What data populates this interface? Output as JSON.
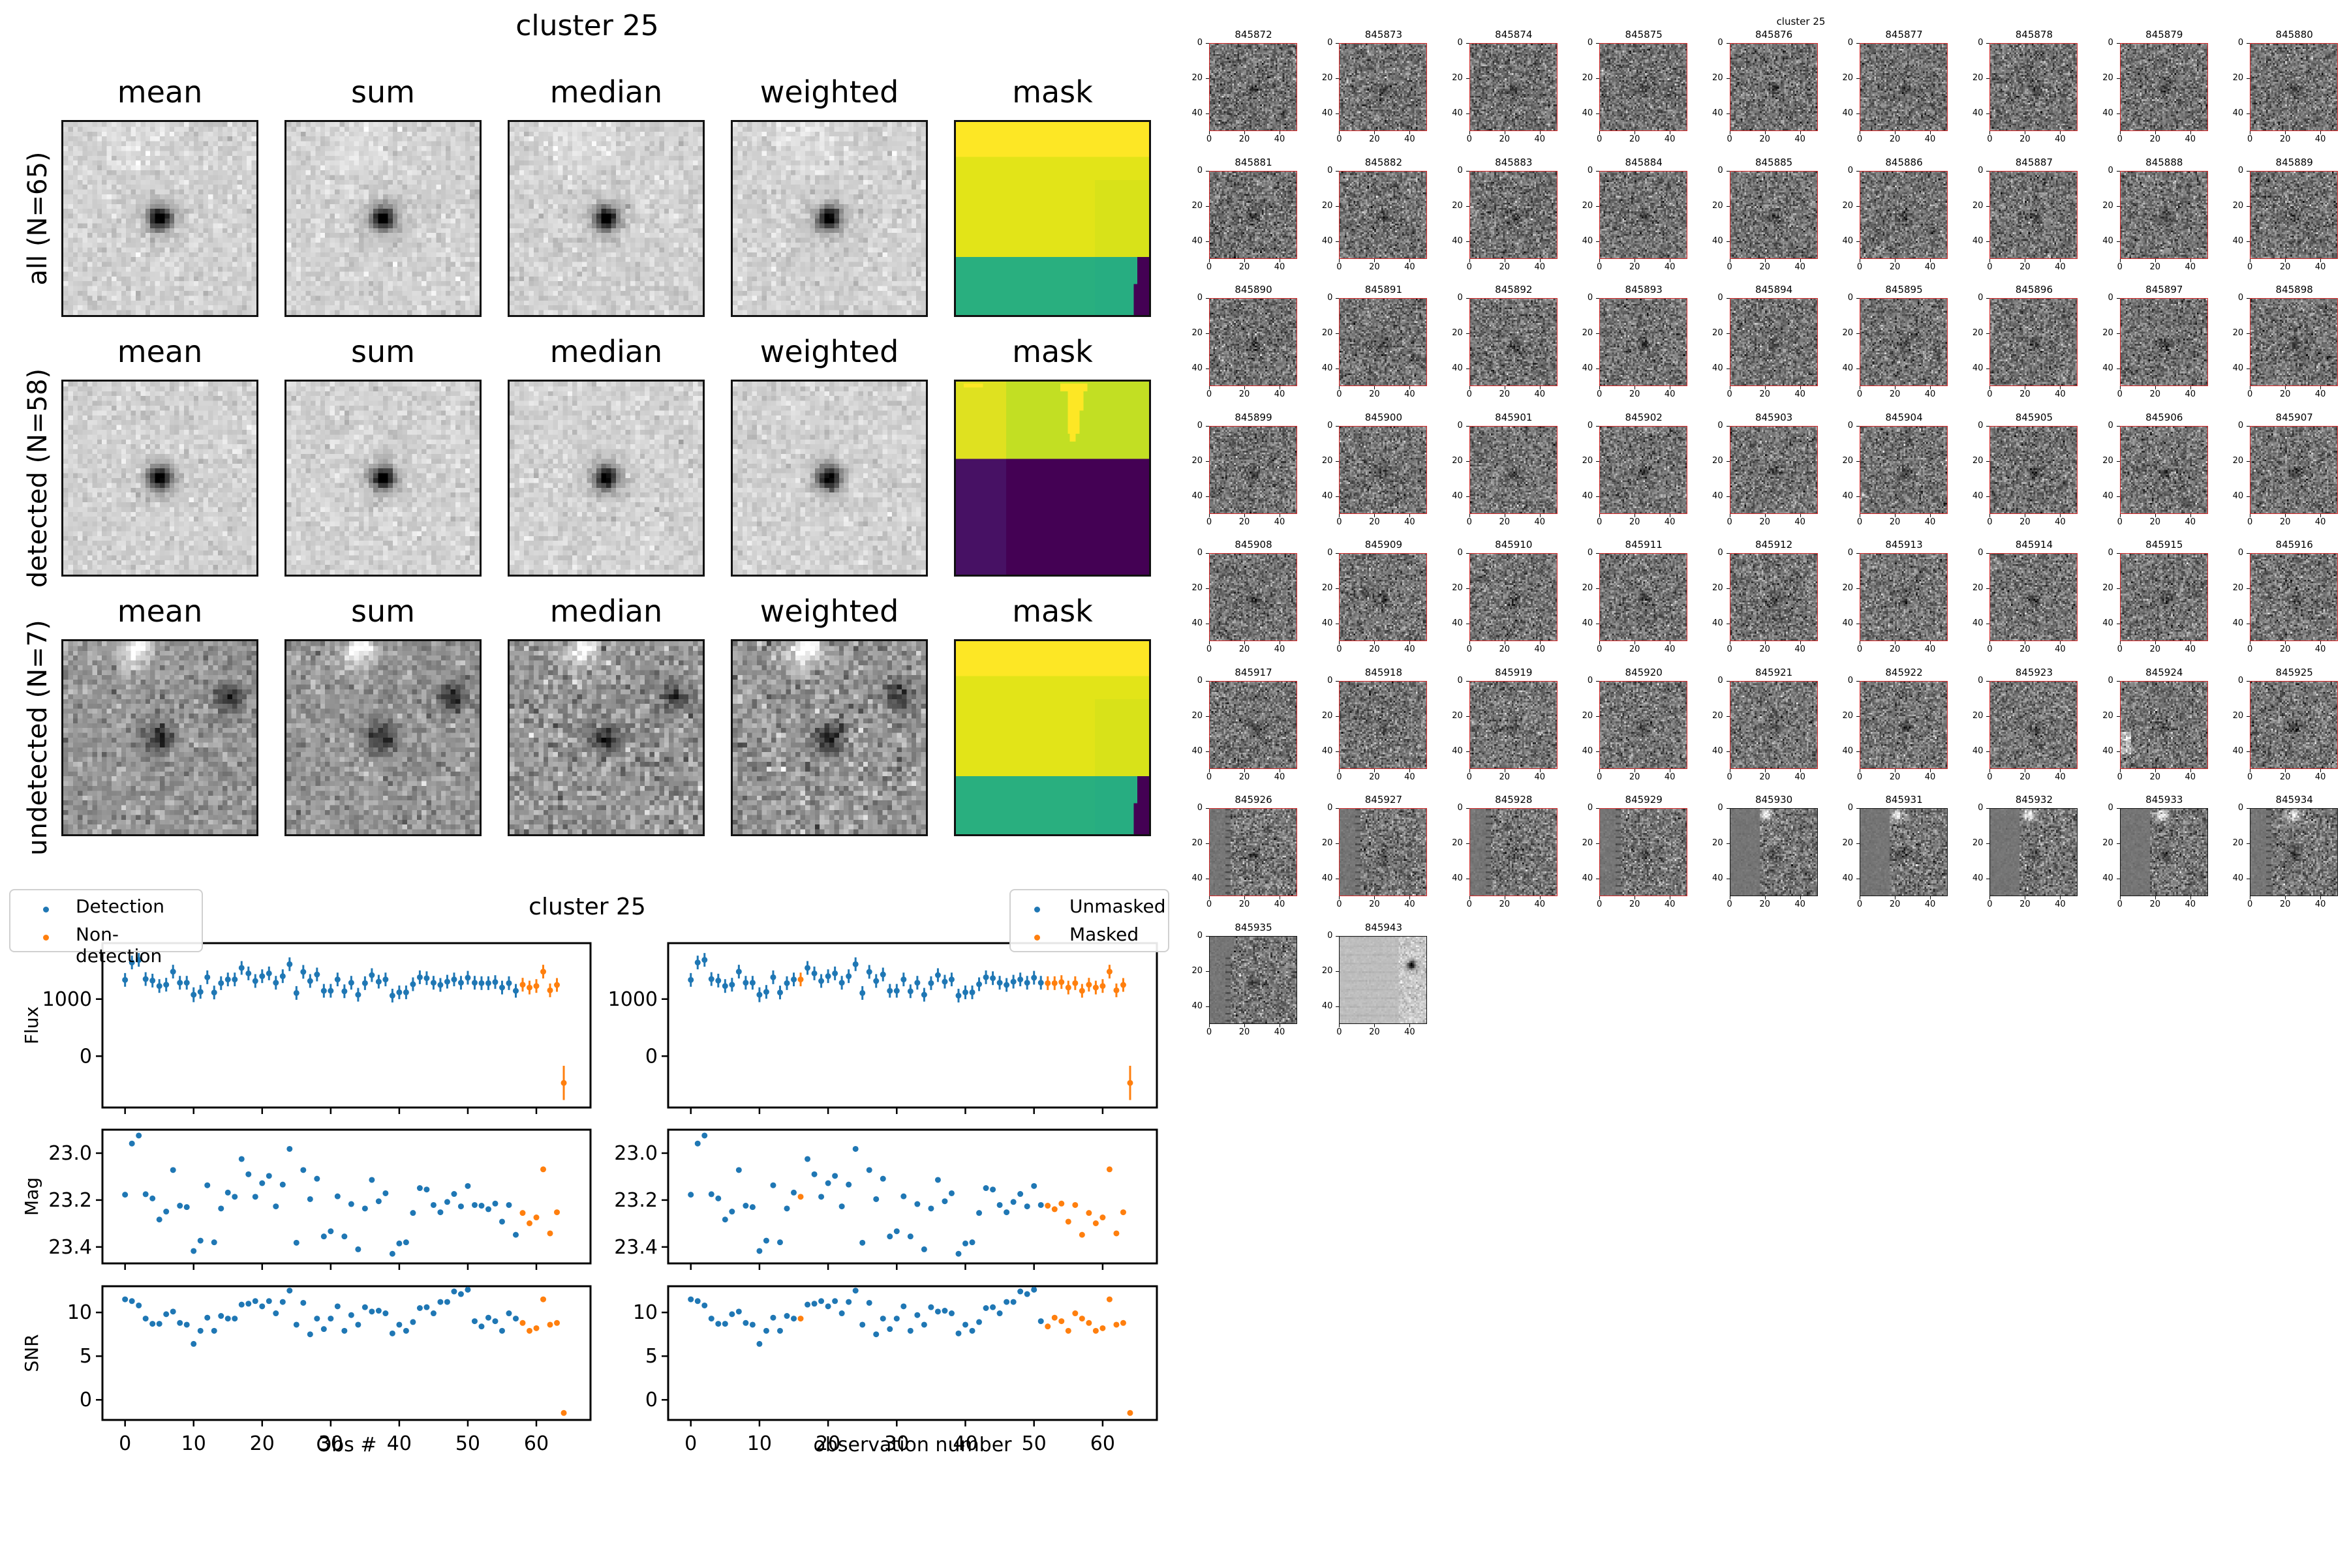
{
  "colors": {
    "detection": "#1f77b4",
    "non_detection": "#ff7f0e",
    "detected_border": "#d62728",
    "undetected_border": "#111111"
  },
  "stack_figure": {
    "title": "cluster 25",
    "columns": [
      "mean",
      "sum",
      "median",
      "weighted",
      "mask"
    ],
    "rows": [
      {
        "label": "all (N=65)",
        "kind": "all"
      },
      {
        "label": "detected (N=58)",
        "kind": "detected"
      },
      {
        "label": "undetected (N=7)",
        "kind": "undetected"
      }
    ]
  },
  "thumbnail_grid": {
    "title": "cluster 25",
    "tick_labels": [
      "0",
      "20",
      "40"
    ],
    "items": [
      {
        "id": "845872",
        "detected": true
      },
      {
        "id": "845873",
        "detected": true
      },
      {
        "id": "845874",
        "detected": true
      },
      {
        "id": "845875",
        "detected": true
      },
      {
        "id": "845876",
        "detected": true
      },
      {
        "id": "845877",
        "detected": true
      },
      {
        "id": "845878",
        "detected": true
      },
      {
        "id": "845879",
        "detected": true
      },
      {
        "id": "845880",
        "detected": true
      },
      {
        "id": "845881",
        "detected": true
      },
      {
        "id": "845882",
        "detected": true
      },
      {
        "id": "845883",
        "detected": true
      },
      {
        "id": "845884",
        "detected": true
      },
      {
        "id": "845885",
        "detected": true
      },
      {
        "id": "845886",
        "detected": true
      },
      {
        "id": "845887",
        "detected": true
      },
      {
        "id": "845888",
        "detected": true
      },
      {
        "id": "845889",
        "detected": true
      },
      {
        "id": "845890",
        "detected": true
      },
      {
        "id": "845891",
        "detected": true
      },
      {
        "id": "845892",
        "detected": true
      },
      {
        "id": "845893",
        "detected": true
      },
      {
        "id": "845894",
        "detected": true
      },
      {
        "id": "845895",
        "detected": true
      },
      {
        "id": "845896",
        "detected": true
      },
      {
        "id": "845897",
        "detected": true
      },
      {
        "id": "845898",
        "detected": true
      },
      {
        "id": "845899",
        "detected": true
      },
      {
        "id": "845900",
        "detected": true
      },
      {
        "id": "845901",
        "detected": true
      },
      {
        "id": "845902",
        "detected": true
      },
      {
        "id": "845903",
        "detected": true
      },
      {
        "id": "845904",
        "detected": true
      },
      {
        "id": "845905",
        "detected": true
      },
      {
        "id": "845906",
        "detected": true
      },
      {
        "id": "845907",
        "detected": true
      },
      {
        "id": "845908",
        "detected": true
      },
      {
        "id": "845909",
        "detected": true
      },
      {
        "id": "845910",
        "detected": true
      },
      {
        "id": "845911",
        "detected": true
      },
      {
        "id": "845912",
        "detected": true
      },
      {
        "id": "845913",
        "detected": true
      },
      {
        "id": "845914",
        "detected": true
      },
      {
        "id": "845915",
        "detected": true
      },
      {
        "id": "845916",
        "detected": true
      },
      {
        "id": "845917",
        "detected": true
      },
      {
        "id": "845918",
        "detected": true
      },
      {
        "id": "845919",
        "detected": true
      },
      {
        "id": "845920",
        "detected": true
      },
      {
        "id": "845921",
        "detected": true
      },
      {
        "id": "845922",
        "detected": true
      },
      {
        "id": "845923",
        "detected": true
      },
      {
        "id": "845924",
        "detected": true
      },
      {
        "id": "845925",
        "detected": true
      },
      {
        "id": "845926",
        "detected": true
      },
      {
        "id": "845927",
        "detected": true
      },
      {
        "id": "845928",
        "detected": true
      },
      {
        "id": "845929",
        "detected": true
      },
      {
        "id": "845930",
        "detected": false
      },
      {
        "id": "845931",
        "detected": false
      },
      {
        "id": "845932",
        "detected": false
      },
      {
        "id": "845933",
        "detected": false
      },
      {
        "id": "845934",
        "detected": false
      },
      {
        "id": "845935",
        "detected": false
      },
      {
        "id": "845943",
        "detected": false
      }
    ]
  },
  "chart_data": [
    {
      "type": "scatter",
      "title": "cluster 25",
      "panel": "left",
      "legend": {
        "placement": "top-left",
        "entries": [
          "Detection",
          "Non-detection"
        ]
      },
      "xlabel": "Obs #",
      "x_ticks": [
        "0",
        "10",
        "20",
        "30",
        "40",
        "50",
        "60"
      ],
      "xlim": [
        -3.3,
        67.9
      ],
      "subplots": [
        {
          "ylabel": "Flux",
          "y_ticks": [
            "1000",
            "0"
          ],
          "y_tick_values": [
            1000,
            0
          ],
          "ylim": [
            -900,
            1980
          ],
          "errorbars": true,
          "metric": "flux"
        },
        {
          "ylabel": "Mag",
          "y_ticks": [
            "23.0",
            "23.2",
            "23.4"
          ],
          "y_tick_values": [
            23.0,
            23.2,
            23.4
          ],
          "ylim": [
            23.47,
            22.9
          ],
          "inverted": true,
          "metric": "mag"
        },
        {
          "ylabel": "SNR",
          "y_ticks": [
            "10",
            "5",
            "0"
          ],
          "y_tick_values": [
            10,
            5,
            0
          ],
          "ylim": [
            -2.3,
            13.0
          ],
          "metric": "snr"
        }
      ],
      "highlight": "non_detection"
    },
    {
      "type": "scatter",
      "panel": "right",
      "legend": {
        "placement": "top-right",
        "entries": [
          "Unmasked",
          "Masked"
        ]
      },
      "xlabel": "observation number",
      "x_ticks": [
        "0",
        "10",
        "20",
        "30",
        "40",
        "50",
        "60"
      ],
      "xlim": [
        -3.3,
        67.9
      ],
      "subplots": [
        {
          "ylabel": "",
          "y_ticks": [
            "1000",
            "0"
          ],
          "y_tick_values": [
            1000,
            0
          ],
          "ylim": [
            -900,
            1980
          ],
          "errorbars": true,
          "metric": "flux"
        },
        {
          "ylabel": "",
          "y_ticks": [
            "23.0",
            "23.2",
            "23.4"
          ],
          "y_tick_values": [
            23.0,
            23.2,
            23.4
          ],
          "ylim": [
            23.47,
            22.9
          ],
          "inverted": true,
          "metric": "mag"
        },
        {
          "ylabel": "",
          "y_ticks": [
            "10",
            "5",
            "0"
          ],
          "y_tick_values": [
            10,
            5,
            0
          ],
          "ylim": [
            -2.3,
            13.0
          ],
          "metric": "snr"
        }
      ],
      "highlight": "masked"
    }
  ],
  "observations": {
    "obs": [
      0,
      1,
      2,
      3,
      4,
      5,
      6,
      7,
      8,
      9,
      10,
      11,
      12,
      13,
      14,
      15,
      16,
      17,
      18,
      19,
      20,
      21,
      22,
      23,
      24,
      25,
      26,
      27,
      28,
      29,
      30,
      31,
      32,
      33,
      34,
      35,
      36,
      37,
      38,
      39,
      40,
      41,
      42,
      43,
      44,
      45,
      46,
      47,
      48,
      49,
      50,
      51,
      52,
      53,
      54,
      55,
      56,
      57,
      58,
      59,
      60,
      61,
      62,
      63,
      64
    ],
    "flux": [
      1336,
      1641,
      1687,
      1351,
      1324,
      1229,
      1252,
      1481,
      1286,
      1286,
      1076,
      1126,
      1382,
      1115,
      1279,
      1344,
      1344,
      1546,
      1450,
      1317,
      1401,
      1450,
      1286,
      1401,
      1611,
      1107,
      1477,
      1317,
      1431,
      1145,
      1145,
      1344,
      1137,
      1286,
      1076,
      1279,
      1420,
      1305,
      1344,
      1061,
      1118,
      1118,
      1260,
      1382,
      1366,
      1286,
      1248,
      1305,
      1344,
      1286,
      1374,
      1286,
      1279,
      1279,
      1298,
      1202,
      1279,
      1145,
      1252,
      1202,
      1229,
      1481,
      1153,
      1248,
      -469
    ],
    "flux_err": [
      120,
      120,
      120,
      120,
      120,
      120,
      120,
      120,
      120,
      120,
      130,
      120,
      120,
      120,
      120,
      120,
      120,
      120,
      120,
      120,
      120,
      120,
      120,
      120,
      120,
      120,
      120,
      120,
      120,
      120,
      120,
      120,
      120,
      120,
      120,
      120,
      120,
      120,
      120,
      120,
      120,
      120,
      120,
      120,
      120,
      120,
      120,
      120,
      120,
      120,
      120,
      120,
      120,
      120,
      120,
      120,
      120,
      120,
      120,
      120,
      120,
      120,
      120,
      120,
      300
    ],
    "mag": [
      23.177,
      22.959,
      22.925,
      23.175,
      23.193,
      23.283,
      23.249,
      23.072,
      23.224,
      23.23,
      23.417,
      23.373,
      23.137,
      23.38,
      23.236,
      23.168,
      23.186,
      23.025,
      23.09,
      23.186,
      23.128,
      23.097,
      23.227,
      23.134,
      22.982,
      23.382,
      23.072,
      23.196,
      23.109,
      23.355,
      23.333,
      23.184,
      23.355,
      23.217,
      23.41,
      23.236,
      23.114,
      23.205,
      23.171,
      23.429,
      23.385,
      23.38,
      23.255,
      23.149,
      23.155,
      23.221,
      23.252,
      23.208,
      23.174,
      23.227,
      23.14,
      23.221,
      23.224,
      23.239,
      23.215,
      23.292,
      23.221,
      23.348,
      23.255,
      23.299,
      23.274,
      23.069,
      23.342,
      23.252,
      null
    ],
    "snr": [
      11.5,
      11.3,
      10.8,
      9.3,
      8.7,
      8.7,
      9.8,
      10.1,
      8.8,
      8.6,
      6.4,
      7.9,
      9.4,
      7.9,
      9.6,
      9.3,
      9.3,
      10.9,
      11.0,
      11.3,
      10.7,
      11.3,
      9.9,
      11.2,
      12.5,
      8.6,
      11.1,
      7.5,
      9.3,
      8.1,
      9.3,
      10.7,
      7.9,
      9.7,
      8.6,
      10.6,
      10.1,
      10.2,
      9.9,
      7.6,
      8.6,
      7.9,
      8.9,
      10.5,
      10.6,
      9.9,
      11.2,
      11.2,
      12.4,
      12.1,
      12.6,
      9.0,
      8.4,
      9.4,
      9.0,
      7.9,
      9.9,
      9.3,
      8.8,
      7.9,
      8.2,
      11.5,
      8.6,
      8.8,
      -1.5
    ],
    "non_detection": [
      58,
      59,
      60,
      61,
      62,
      63,
      64
    ],
    "masked": [
      16,
      52,
      53,
      54,
      55,
      56,
      57,
      58,
      59,
      60,
      61,
      62,
      63,
      64
    ]
  }
}
